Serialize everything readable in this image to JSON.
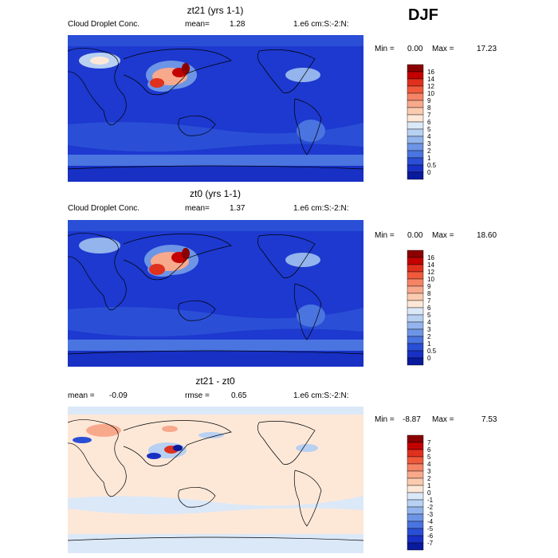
{
  "season": "DJF",
  "panels": [
    {
      "title": "zt21 (yrs 1-1)",
      "field": "Cloud Droplet Conc.",
      "stat1_label": "mean=",
      "stat1_value": "1.28",
      "units": "1.e6 cm:S:-2:N:",
      "min_label": "Min =",
      "min_value": "0.00",
      "max_label": "Max =",
      "max_value": "17.23",
      "colorbar_labels": [
        "16",
        "14",
        "12",
        "10",
        "9",
        "8",
        "7",
        "6",
        "5",
        "4",
        "3",
        "2",
        "1",
        "0.5",
        "0"
      ],
      "colors": [
        "#8b0000",
        "#c40000",
        "#e0301e",
        "#f05a3c",
        "#f58466",
        "#f8a98c",
        "#fbcbb0",
        "#fde8d8",
        "#dbe8f8",
        "#b8d0f2",
        "#93b4ec",
        "#6d95e6",
        "#4a74e0",
        "#2a4fd6",
        "#1830c4",
        "#0a1a9c"
      ],
      "map_base": "#1d39cf"
    },
    {
      "title": "zt0 (yrs 1-1)",
      "field": "Cloud Droplet Conc.",
      "stat1_label": "mean=",
      "stat1_value": "1.37",
      "units": "1.e6 cm:S:-2:N:",
      "min_label": "Min =",
      "min_value": "0.00",
      "max_label": "Max =",
      "max_value": "18.60",
      "colorbar_labels": [
        "16",
        "14",
        "12",
        "10",
        "9",
        "8",
        "7",
        "6",
        "5",
        "4",
        "3",
        "2",
        "1",
        "0.5",
        "0"
      ],
      "colors": [
        "#8b0000",
        "#c40000",
        "#e0301e",
        "#f05a3c",
        "#f58466",
        "#f8a98c",
        "#fbcbb0",
        "#fde8d8",
        "#dbe8f8",
        "#b8d0f2",
        "#93b4ec",
        "#6d95e6",
        "#4a74e0",
        "#2a4fd6",
        "#1830c4",
        "#0a1a9c"
      ],
      "map_base": "#1d39cf"
    },
    {
      "title": "zt21 - zt0",
      "stat1_label": "mean =",
      "stat1_value": "-0.09",
      "stat2_label": "rmse =",
      "stat2_value": "0.65",
      "units": "1.e6 cm:S:-2:N:",
      "min_label": "Min =",
      "min_value": "-8.87",
      "max_label": "Max =",
      "max_value": "7.53",
      "colorbar_labels": [
        "7",
        "6",
        "5",
        "4",
        "3",
        "2",
        "1",
        "0",
        "-1",
        "-2",
        "-3",
        "-4",
        "-5",
        "-6",
        "-7"
      ],
      "colors": [
        "#8b0000",
        "#c40000",
        "#e0301e",
        "#f05a3c",
        "#f58466",
        "#f8a98c",
        "#fbcbb0",
        "#fde8d8",
        "#dbe8f8",
        "#b8d0f2",
        "#93b4ec",
        "#6d95e6",
        "#4a74e0",
        "#2a4fd6",
        "#1830c4",
        "#0a1a9c"
      ],
      "map_base": "#fde8d8"
    }
  ]
}
